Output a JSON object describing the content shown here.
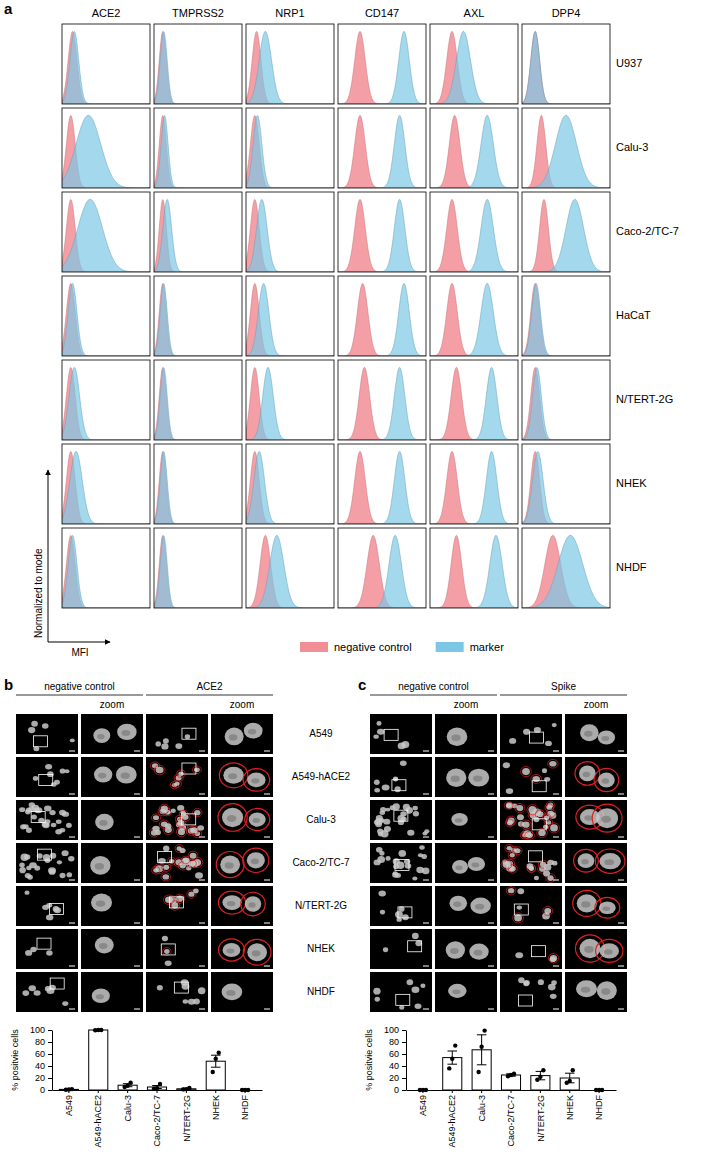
{
  "chart_data": [
    {
      "type": "histogram_grid",
      "panel_label": "a",
      "columns": [
        "ACE2",
        "TMPRSS2",
        "NRP1",
        "CD147",
        "AXL",
        "DPP4"
      ],
      "rows": [
        "U937",
        "Calu-3",
        "Caco-2/TC-7",
        "HaCaT",
        "N/TERT-2G",
        "NHEK",
        "NHDF"
      ],
      "y_label": "Normalized to mode",
      "x_label": "MFI",
      "tick_labels": false,
      "xlim": [
        0,
        100
      ],
      "ylim": [
        0,
        110
      ],
      "peak_height": 100,
      "legend": "bottom",
      "series": [
        {
          "name": "negative control",
          "color": "#f28e95",
          "peaks": [
            [
              12,
              10,
              12,
              25,
              25,
              15
            ],
            [
              10,
              10,
              10,
              25,
              28,
              22
            ],
            [
              10,
              10,
              10,
              25,
              25,
              25
            ],
            [
              10,
              10,
              10,
              28,
              25,
              15
            ],
            [
              10,
              10,
              10,
              30,
              30,
              15
            ],
            [
              10,
              10,
              10,
              25,
              25,
              15
            ],
            [
              10,
              10,
              22,
              40,
              30,
              35
            ]
          ],
          "spreads": [
            [
              5,
              4,
              5,
              6,
              6,
              5
            ],
            [
              5,
              4,
              5,
              6,
              6,
              5
            ],
            [
              5,
              4,
              5,
              6,
              6,
              5
            ],
            [
              5,
              4,
              5,
              6,
              6,
              5
            ],
            [
              5,
              4,
              5,
              6,
              6,
              5
            ],
            [
              5,
              4,
              5,
              6,
              6,
              5
            ],
            [
              5,
              4,
              6,
              7,
              6,
              9
            ]
          ]
        },
        {
          "name": "marker",
          "color": "#7cc7e6",
          "peaks": [
            [
              14,
              11,
              22,
              75,
              38,
              15
            ],
            [
              30,
              12,
              13,
              70,
              65,
              50
            ],
            [
              32,
              15,
              18,
              70,
              65,
              60
            ],
            [
              12,
              11,
              20,
              75,
              65,
              16
            ],
            [
              14,
              11,
              25,
              70,
              70,
              17
            ],
            [
              16,
              11,
              15,
              70,
              70,
              18
            ],
            [
              12,
              11,
              35,
              65,
              75,
              55
            ]
          ],
          "spreads": [
            [
              5,
              4,
              7,
              6,
              8,
              5
            ],
            [
              14,
              4,
              5,
              6,
              7,
              12
            ],
            [
              14,
              5,
              6,
              6,
              7,
              10
            ],
            [
              5,
              4,
              6,
              6,
              7,
              5
            ],
            [
              6,
              4,
              6,
              6,
              6,
              5
            ],
            [
              7,
              4,
              6,
              6,
              6,
              6
            ],
            [
              5,
              4,
              8,
              7,
              7,
              14
            ]
          ]
        }
      ]
    },
    {
      "type": "bar",
      "y_label": "% positvie cells",
      "categories": [
        "A549",
        "A549-hACE2",
        "Calu-3",
        "Caco-2/TC-7",
        "N/TERT-2G",
        "NHEK",
        "NHDF"
      ],
      "values": [
        1,
        100,
        8,
        5,
        2,
        48,
        0
      ],
      "errors": [
        0.5,
        0.3,
        2.5,
        2.5,
        1,
        10,
        0
      ],
      "points": [
        [
          0.5,
          1,
          1.5
        ],
        [
          99.5,
          100,
          100
        ],
        [
          5,
          7,
          12
        ],
        [
          2,
          3,
          10
        ],
        [
          1,
          1.5,
          3.5
        ],
        [
          30,
          52,
          62
        ],
        [
          0,
          0,
          0
        ]
      ],
      "ylim": [
        0,
        100
      ],
      "yticks": [
        0,
        20,
        40,
        60,
        80,
        100
      ],
      "color": "#ffffff"
    },
    {
      "type": "bar",
      "y_label": "% positvie cells",
      "categories": [
        "A549",
        "A549-hACE2",
        "Calu-3",
        "Caco-2/TC-7",
        "N/TERT-2G",
        "NHEK",
        "NHDF"
      ],
      "values": [
        0,
        54,
        67,
        25,
        24,
        20,
        0
      ],
      "errors": [
        0,
        11,
        25,
        2,
        7,
        8,
        0
      ],
      "points": [
        [
          0,
          0,
          0
        ],
        [
          36,
          52,
          74
        ],
        [
          30,
          72,
          99
        ],
        [
          23,
          25,
          27
        ],
        [
          17,
          22,
          33
        ],
        [
          12,
          15,
          33
        ],
        [
          0,
          0,
          0
        ]
      ],
      "ylim": [
        0,
        100
      ],
      "yticks": [
        0,
        20,
        40,
        60,
        80,
        100
      ],
      "color": "#ffffff"
    }
  ],
  "image_panels": {
    "row_labels": [
      "A549",
      "A549-hACE2",
      "Calu-3",
      "Caco-2/TC-7",
      "N/TERT-2G",
      "NHEK",
      "NHDF"
    ],
    "panels": [
      {
        "panel_label": "b",
        "column_heads": [
          "negative control",
          "ACE2"
        ],
        "zoom_label": "zoom",
        "stained": [
          false,
          true,
          true,
          true,
          true,
          true,
          false
        ]
      },
      {
        "panel_label": "c",
        "column_heads": [
          "negative control",
          "Spike"
        ],
        "zoom_label": "zoom",
        "stained": [
          false,
          true,
          true,
          true,
          true,
          true,
          false
        ]
      }
    ]
  }
}
